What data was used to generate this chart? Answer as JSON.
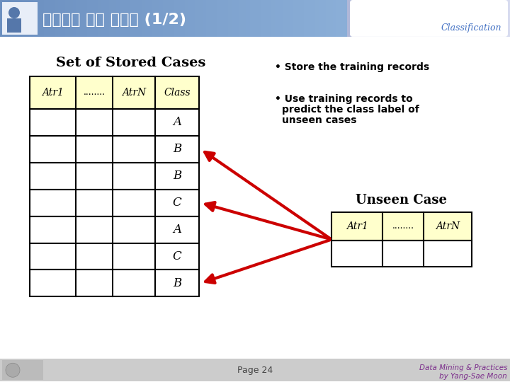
{
  "title_korean": "인스턴스 기반 분류기 (1/2)",
  "title_bg_left": "#7B9FD0",
  "title_bg_right": "#9AAED8",
  "classification_text": "Classification",
  "classification_color": "#4472C4",
  "header_bg": "#FFFFCC",
  "table_border": "#000000",
  "stored_cases_title": "Set of Stored Cases",
  "unseen_case_title": "Unseen Case",
  "stored_headers": [
    "Atr1",
    "........",
    "AtrN",
    "Class"
  ],
  "stored_classes": [
    "A",
    "B",
    "B",
    "C",
    "A",
    "C",
    "B"
  ],
  "unseen_headers": [
    "Atr1",
    "........",
    "AtrN"
  ],
  "bullet1": "Store the training records",
  "bullet2_line1": "Use training records to",
  "bullet2_line2": "  predict the class label of",
  "bullet2_line3": "  unseen cases",
  "page_text": "Page 24",
  "footer_right1": "Data Mining & Practices",
  "footer_right2": "by Yang-Sae Moon",
  "footer_color": "#7B2D8B",
  "footer_bg": "#CCCCCC",
  "bg_color": "#FFFFFF",
  "arrow_color": "#CC0000",
  "white": "#FFFFFF",
  "black": "#000000"
}
